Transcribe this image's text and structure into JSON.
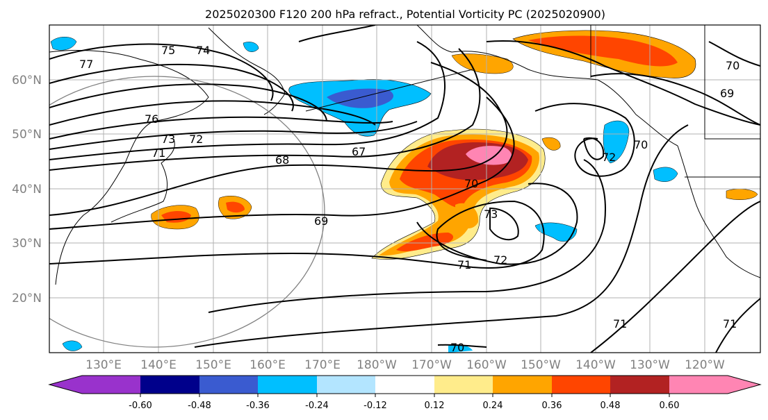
{
  "title": "2025020300 F120 200 hPa refract., Potential Vorticity PC (2025020900)",
  "lat_labels": [
    "60°N",
    "50°N",
    "40°N",
    "30°N",
    "20°N"
  ],
  "lon_labels": [
    "130°E",
    "140°E",
    "150°E",
    "160°E",
    "170°E",
    "180°W",
    "170°W",
    "160°W",
    "150°W",
    "140°W",
    "130°W",
    "120°W"
  ],
  "contour_labels": [
    "77",
    "75",
    "74",
    "76",
    "73",
    "72",
    "71",
    "68",
    "67",
    "70",
    "69",
    "73",
    "72",
    "71",
    "72",
    "70",
    "69",
    "70",
    "71",
    "71",
    "70"
  ],
  "colorbar": {
    "ticks": [
      "-0.60",
      "-0.48",
      "-0.36",
      "-0.24",
      "-0.12",
      "0.12",
      "0.24",
      "0.36",
      "0.48",
      "0.60"
    ],
    "colors": [
      "#9932cc",
      "#00008b",
      "#3a5bd0",
      "#00bfff",
      "#b3e5ff",
      "#ffffff",
      "#ffec8b",
      "#ffa500",
      "#ff4500",
      "#b22222",
      "#ff85b3"
    ]
  }
}
